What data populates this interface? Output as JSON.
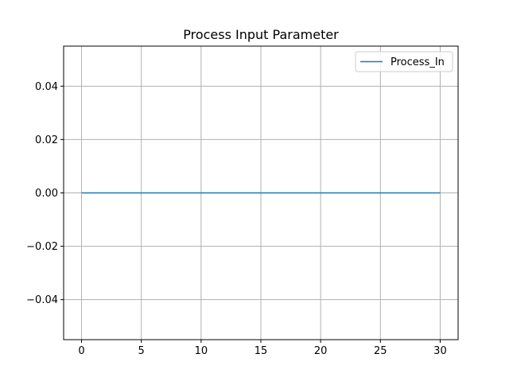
{
  "chart_data": {
    "type": "line",
    "title": "Process Input Parameter",
    "xlabel": "",
    "ylabel": "",
    "xlim": [
      -1.5,
      31.5
    ],
    "ylim": [
      -0.055,
      0.055
    ],
    "x_ticks": [
      0,
      5,
      10,
      15,
      20,
      25,
      30
    ],
    "x_tick_labels": [
      "0",
      "5",
      "10",
      "15",
      "20",
      "25",
      "30"
    ],
    "y_ticks": [
      0.04,
      0.02,
      0.0,
      -0.02,
      -0.04
    ],
    "y_tick_labels": [
      "0.04",
      "0.02",
      "0.00",
      "−0.02",
      "−0.04"
    ],
    "grid": true,
    "legend_position": "top-right",
    "series": [
      {
        "name": "Process_In",
        "color": "#1f77b4",
        "x": [
          0,
          1,
          2,
          3,
          4,
          5,
          6,
          7,
          8,
          9,
          10,
          11,
          12,
          13,
          14,
          15,
          16,
          17,
          18,
          19,
          20,
          21,
          22,
          23,
          24,
          25,
          26,
          27,
          28,
          29,
          30
        ],
        "y": [
          0,
          0,
          0,
          0,
          0,
          0,
          0,
          0,
          0,
          0,
          0,
          0,
          0,
          0,
          0,
          0,
          0,
          0,
          0,
          0,
          0,
          0,
          0,
          0,
          0,
          0,
          0,
          0,
          0,
          0,
          0
        ]
      }
    ]
  }
}
